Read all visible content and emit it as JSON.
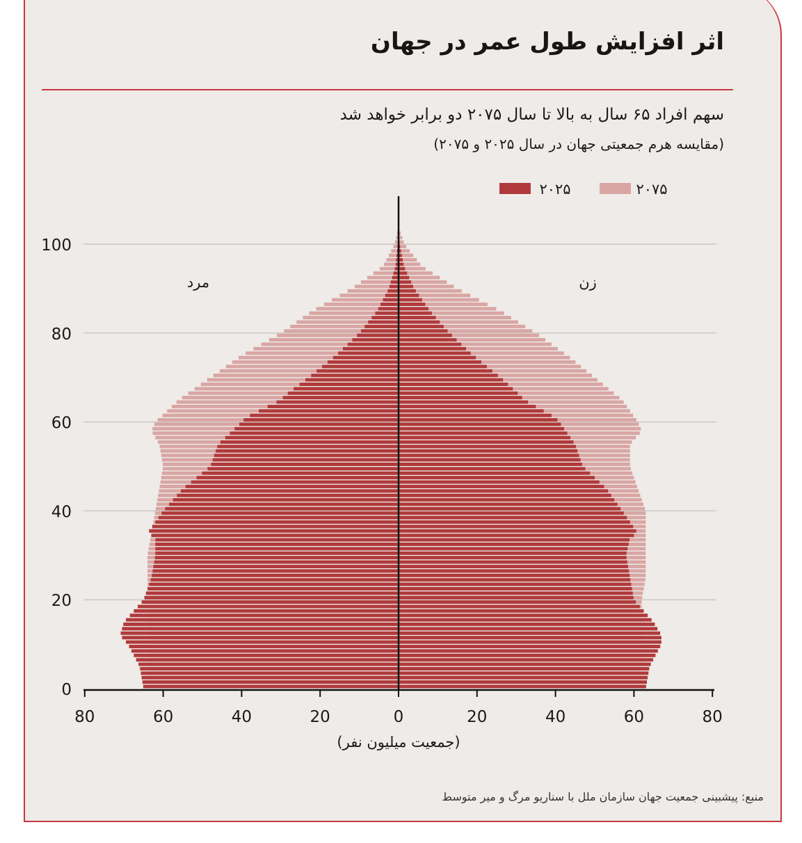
{
  "title": "اثر افزایش طول عمر در جهان",
  "subtitle": "سهم افراد ۶۵ سال به بالا تا سال ۲۰۷۵ دو برابر خواهد شد",
  "subtitle2": "(مقایسه هرم جمعیتی جهان در سال ۲۰۲۵ و ۲۰۷۵)",
  "source": "منبع: پیشبینی جمعیت جهان سازمان ملل با سناریو مرگ و میر متوسط",
  "colors": {
    "accent": "#c5383d",
    "series_2025": "#b03a3b",
    "series_2075": "#d9a6a4",
    "background": "#efebe8"
  },
  "chart_data": {
    "type": "bar",
    "orientation": "horizontal-pyramid",
    "y_ticks": [
      "0",
      "20",
      "40",
      "60",
      "80",
      "100"
    ],
    "x_ticks": [
      "80",
      "60",
      "40",
      "20",
      "0",
      "20",
      "40",
      "60",
      "80"
    ],
    "xlabel": "(جمعیت میلیون نفر)",
    "xlim": [
      -80,
      80
    ],
    "ylim": [
      0,
      110
    ],
    "side_labels": {
      "left": "مرد",
      "right": "زن"
    },
    "legend": {
      "position": "top-right"
    },
    "series": [
      {
        "name": "۲۰۲۵",
        "ages": [
          0,
          5,
          10,
          12,
          15,
          18,
          20,
          25,
          30,
          34,
          35,
          40,
          45,
          50,
          55,
          60,
          61,
          65,
          66,
          70,
          75,
          80,
          85,
          90,
          95,
          100,
          104
        ],
        "male": [
          65,
          66,
          69,
          71,
          70,
          67,
          65,
          63,
          62,
          62,
          64,
          60,
          55,
          48,
          46,
          40,
          39,
          30,
          29,
          23,
          16,
          10,
          5.5,
          2.5,
          0.8,
          0.2,
          0
        ],
        "female": [
          63,
          64,
          67,
          67,
          65,
          62,
          60,
          59,
          58,
          59,
          61,
          57,
          53,
          47,
          45,
          41,
          40,
          32,
          31,
          26,
          19,
          13,
          8,
          4,
          1.4,
          0.3,
          0
        ]
      },
      {
        "name": "۲۰۷۵",
        "ages": [
          0,
          5,
          10,
          15,
          20,
          25,
          30,
          35,
          40,
          45,
          50,
          55,
          58,
          60,
          65,
          70,
          75,
          80,
          85,
          90,
          95,
          100,
          104
        ],
        "male": [
          64,
          64,
          64,
          64,
          64,
          64,
          64,
          63,
          62,
          61,
          60,
          61,
          63,
          62,
          56,
          48,
          40,
          30,
          22,
          12,
          4,
          1,
          0
        ],
        "female": [
          62,
          62,
          62,
          62,
          62,
          63,
          63,
          63,
          63,
          61,
          59,
          59,
          62,
          61,
          57,
          50,
          43,
          35,
          26,
          15,
          6,
          1.5,
          0
        ]
      }
    ]
  }
}
